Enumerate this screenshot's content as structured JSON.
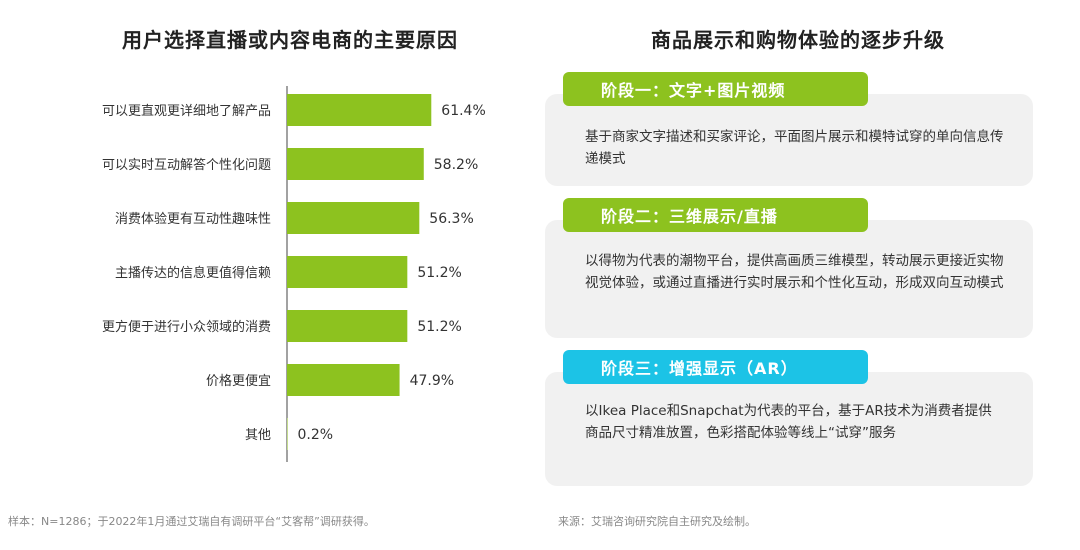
{
  "left_title": "用户选择直播或内容电商的主要原因",
  "right_title": "商品展示和购物体验的逐步升级",
  "chart_data": {
    "type": "bar",
    "orientation": "horizontal",
    "title": "用户选择直播或内容电商的主要原因",
    "categories": [
      "可以更直观更详细地了解产品",
      "可以实时互动解答个性化问题",
      "消费体验更有互动性趣味性",
      "主播传达的信息更值得信赖",
      "更方便于进行小众领域的消费",
      "价格更便宜",
      "其他"
    ],
    "values": [
      61.4,
      58.2,
      56.3,
      51.2,
      51.2,
      47.9,
      0.2
    ],
    "value_labels": [
      "61.4%",
      "58.2%",
      "56.3%",
      "51.2%",
      "51.2%",
      "47.9%",
      "0.2%"
    ],
    "bar_color": "#8dc21f",
    "xlim": [
      0,
      100
    ],
    "grid": false
  },
  "stages": [
    {
      "tab": "阶段一：文字+图片视频",
      "color": "#8dc21f",
      "description": "基于商家文字描述和买家评论，平面图片展示和模特试穿的单向信息传递模式"
    },
    {
      "tab": "阶段二：三维展示/直播",
      "color": "#8dc21f",
      "description": "以得物为代表的潮物平台，提供高画质三维模型，转动展示更接近实物视觉体验，或通过直播进行实时展示和个性化互动，形成双向互动模式"
    },
    {
      "tab": "阶段三：增强显示（AR）",
      "color": "#1cc3e6",
      "description": "以Ikea Place和Snapchat为代表的平台，基于AR技术为消费者提供商品尺寸精准放置，色彩搭配体验等线上“试穿”服务"
    }
  ],
  "footnote_left": "样本：N=1286；于2022年1月通过艾瑞自有调研平台“艾客帮”调研获得。",
  "footnote_right": "来源：艾瑞咨询研究院自主研究及绘制。"
}
